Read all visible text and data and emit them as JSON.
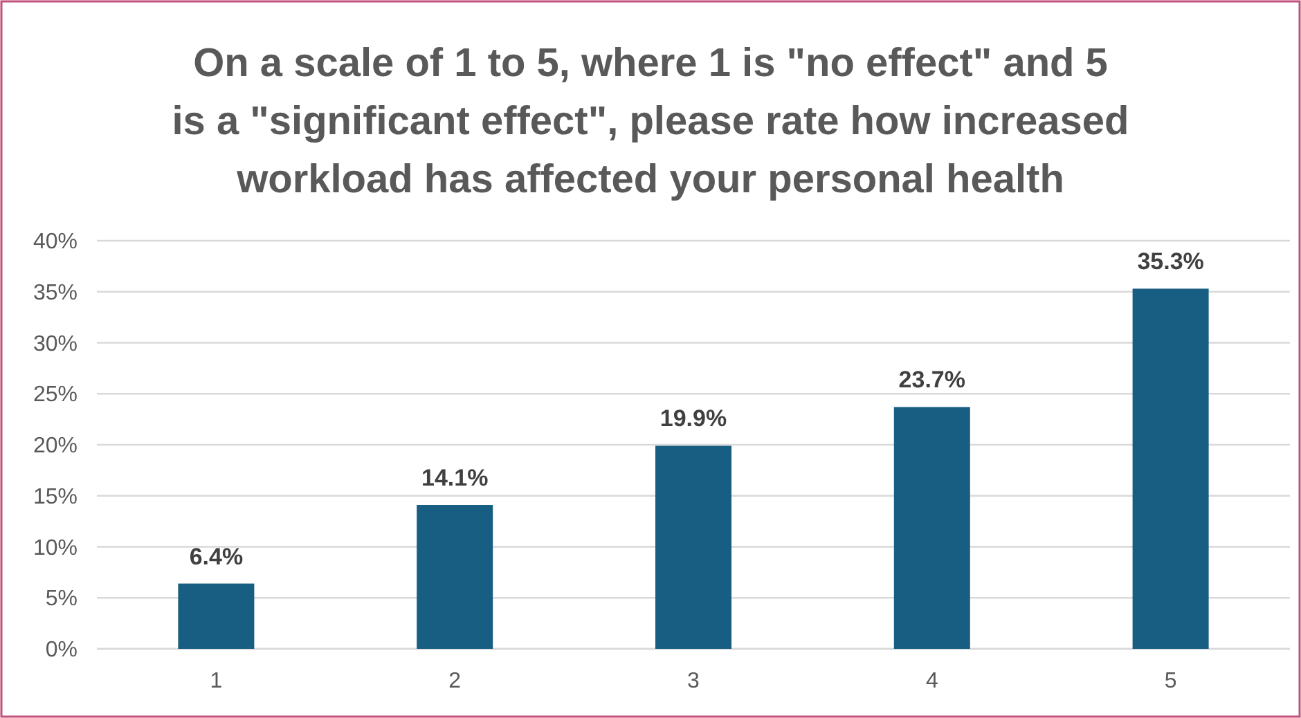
{
  "chart_data": {
    "type": "bar",
    "title": "On a scale of 1 to 5, where 1 is \"no effect\" and 5 is a \"significant effect\", please rate how increased workload has affected your personal health",
    "categories": [
      "1",
      "2",
      "3",
      "4",
      "5"
    ],
    "values": [
      6.4,
      14.1,
      19.9,
      23.7,
      35.3
    ],
    "value_labels": [
      "6.4%",
      "14.1%",
      "19.9%",
      "23.7%",
      "35.3%"
    ],
    "color": "#175e82",
    "ylim": [
      0,
      40
    ],
    "yticks": [
      {
        "value": 0,
        "label": "0%"
      },
      {
        "value": 5,
        "label": "5%"
      },
      {
        "value": 10,
        "label": "10%"
      },
      {
        "value": 15,
        "label": "15%"
      },
      {
        "value": 20,
        "label": "20%"
      },
      {
        "value": 25,
        "label": "25%"
      },
      {
        "value": 30,
        "label": "30%"
      },
      {
        "value": 35,
        "label": "35%"
      },
      {
        "value": 40,
        "label": "40%"
      }
    ],
    "grid": "y"
  }
}
